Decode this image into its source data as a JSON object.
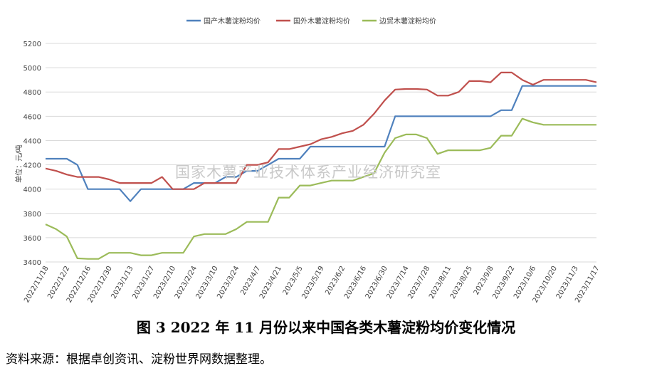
{
  "chart_data": {
    "type": "line",
    "ylabel": "单位：元/吨",
    "ylim": [
      3400,
      5200
    ],
    "yticks": [
      3400,
      3600,
      3800,
      4000,
      4200,
      4400,
      4600,
      4800,
      5000,
      5200
    ],
    "grid": "horizontal",
    "legend_position": "top-center",
    "x_tick_labels": [
      "2022/11/18",
      "2022/12/2",
      "2022/12/16",
      "2022/12/30",
      "2023/1/13",
      "2023/1/27",
      "2023/2/10",
      "2023/2/24",
      "2023/3/10",
      "2023/3/24",
      "2023/4/7",
      "2023/4/21",
      "2023/5/5",
      "2023/5/19",
      "2023/6/2",
      "2023/6/16",
      "2023/6/30",
      "2023/7/14",
      "2023/7/28",
      "2023/8/11",
      "2023/8/25",
      "2023/9/8",
      "2023/9/22",
      "2023/10/6",
      "2023/10/20",
      "2023/11/3",
      "2023/11/17"
    ],
    "series": [
      {
        "name": "国产木薯淀粉均价",
        "color": "#4f81bd",
        "values": [
          4250,
          4250,
          4250,
          4200,
          4000,
          4000,
          4000,
          4000,
          3900,
          4000,
          4000,
          4000,
          4000,
          4000,
          4050,
          4050,
          4050,
          4100,
          4100,
          4150,
          4150,
          4200,
          4250,
          4250,
          4250,
          4350,
          4350,
          4350,
          4350,
          4350,
          4350,
          4350,
          4350,
          4600,
          4600,
          4600,
          4600,
          4600,
          4600,
          4600,
          4600,
          4600,
          4600,
          4650,
          4650,
          4850,
          4850,
          4850,
          4850,
          4850,
          4850,
          4850,
          4850
        ]
      },
      {
        "name": "国外木薯淀粉均价",
        "color": "#c0504d",
        "values": [
          4170,
          4150,
          4120,
          4100,
          4100,
          4100,
          4080,
          4050,
          4050,
          4050,
          4050,
          4100,
          4000,
          4000,
          4000,
          4050,
          4050,
          4050,
          4050,
          4200,
          4200,
          4220,
          4330,
          4330,
          4350,
          4370,
          4410,
          4430,
          4460,
          4480,
          4530,
          4620,
          4730,
          4820,
          4825,
          4825,
          4820,
          4770,
          4770,
          4800,
          4890,
          4890,
          4880,
          4960,
          4960,
          4900,
          4860,
          4900,
          4900,
          4900,
          4900,
          4900,
          4880
        ]
      },
      {
        "name": "边贸木薯淀粉均价",
        "color": "#9bbb59",
        "values": [
          3710,
          3670,
          3610,
          3430,
          3425,
          3425,
          3475,
          3475,
          3475,
          3455,
          3455,
          3475,
          3475,
          3475,
          3610,
          3630,
          3630,
          3630,
          3670,
          3730,
          3730,
          3730,
          3930,
          3930,
          4030,
          4030,
          4050,
          4070,
          4070,
          4070,
          4100,
          4130,
          4300,
          4420,
          4450,
          4450,
          4420,
          4290,
          4320,
          4320,
          4320,
          4320,
          4340,
          4440,
          4440,
          4580,
          4550,
          4530,
          4530,
          4530,
          4530,
          4530,
          4530
        ]
      }
    ]
  },
  "watermark": "国家木薯产业技术体系产业经济研究室",
  "caption": "图 3   2022 年 11 月份以来中国各类木薯淀粉均价变化情况",
  "source": "资料来源：根据卓创资讯、淀粉世界网数据整理。"
}
